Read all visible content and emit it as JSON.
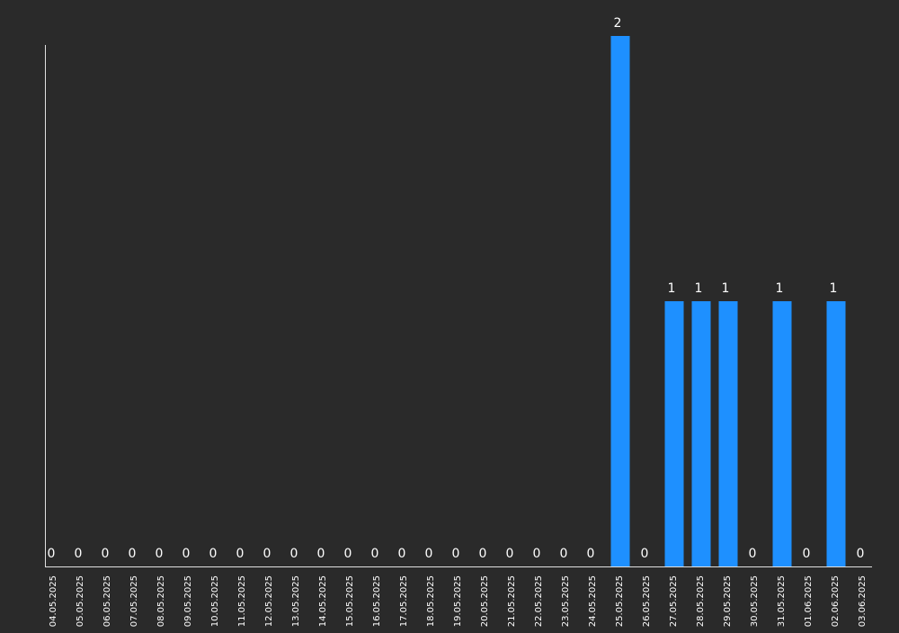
{
  "chart_data": {
    "type": "bar",
    "categories": [
      "04.05.2025",
      "05.05.2025",
      "06.05.2025",
      "07.05.2025",
      "08.05.2025",
      "09.05.2025",
      "10.05.2025",
      "11.05.2025",
      "12.05.2025",
      "13.05.2025",
      "14.05.2025",
      "15.05.2025",
      "16.05.2025",
      "17.05.2025",
      "18.05.2025",
      "19.05.2025",
      "20.05.2025",
      "21.05.2025",
      "22.05.2025",
      "23.05.2025",
      "24.05.2025",
      "25.05.2025",
      "26.05.2025",
      "27.05.2025",
      "28.05.2025",
      "29.05.2025",
      "30.05.2025",
      "31.05.2025",
      "01.06.2025",
      "02.06.2025",
      "03.06.2025"
    ],
    "values": [
      0,
      0,
      0,
      0,
      0,
      0,
      0,
      0,
      0,
      0,
      0,
      0,
      0,
      0,
      0,
      0,
      0,
      0,
      0,
      0,
      0,
      2,
      0,
      1,
      1,
      1,
      0,
      1,
      0,
      1,
      0
    ],
    "color": "#1e90ff",
    "ylim": [
      0,
      2
    ]
  }
}
